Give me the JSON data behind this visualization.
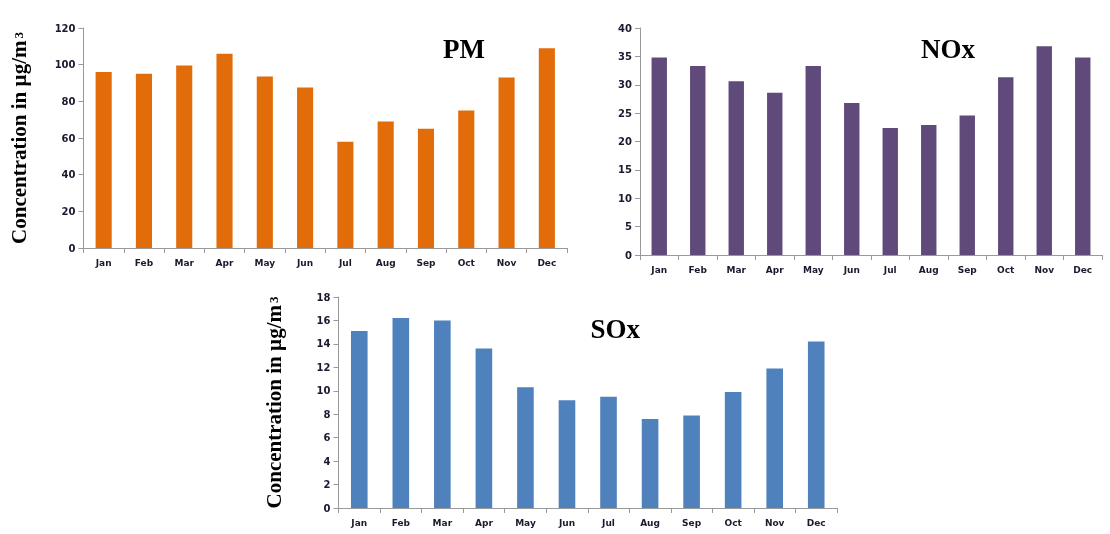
{
  "chart_data": [
    {
      "type": "bar",
      "title": "PM",
      "ylabel": "Concentration in µg/m$^{3}$",
      "categories": [
        "Jan",
        "Feb",
        "Mar",
        "Apr",
        "May",
        "Jun",
        "Jul",
        "Aug",
        "Sep",
        "Oct",
        "Nov",
        "Dec"
      ],
      "values": [
        96,
        95,
        99.5,
        106,
        93.5,
        87.5,
        58,
        69,
        65,
        75,
        93,
        109
      ],
      "color": "#e36c0a",
      "ylim": [
        0,
        120
      ],
      "yticks": [
        0,
        20,
        40,
        60,
        80,
        100,
        120
      ]
    },
    {
      "type": "bar",
      "title": "NOx",
      "categories": [
        "Jan",
        "Feb",
        "Mar",
        "Apr",
        "May",
        "Jun",
        "Jul",
        "Aug",
        "Sep",
        "Oct",
        "Nov",
        "Dec"
      ],
      "values": [
        34.8,
        33.3,
        30.6,
        28.6,
        33.3,
        26.8,
        22.4,
        22.9,
        24.6,
        31.3,
        36.8,
        34.8
      ],
      "color": "#604a7b",
      "ylim": [
        0,
        40
      ],
      "yticks": [
        0,
        5,
        10,
        15,
        20,
        25,
        30,
        35,
        40
      ]
    },
    {
      "type": "bar",
      "title": "SOx",
      "ylabel": "Concentration in µg/m$^{3}$",
      "categories": [
        "Jan",
        "Feb",
        "Mar",
        "Apr",
        "May",
        "Jun",
        "Jul",
        "Aug",
        "Sep",
        "Oct",
        "Nov",
        "Dec"
      ],
      "values": [
        15.1,
        16.2,
        16.0,
        13.6,
        10.3,
        9.2,
        9.5,
        7.6,
        7.9,
        9.9,
        11.9,
        14.2
      ],
      "color": "#4f81bd",
      "ylim": [
        0,
        18
      ],
      "yticks": [
        0,
        2,
        4,
        6,
        8,
        10,
        12,
        14,
        16,
        18
      ]
    }
  ]
}
